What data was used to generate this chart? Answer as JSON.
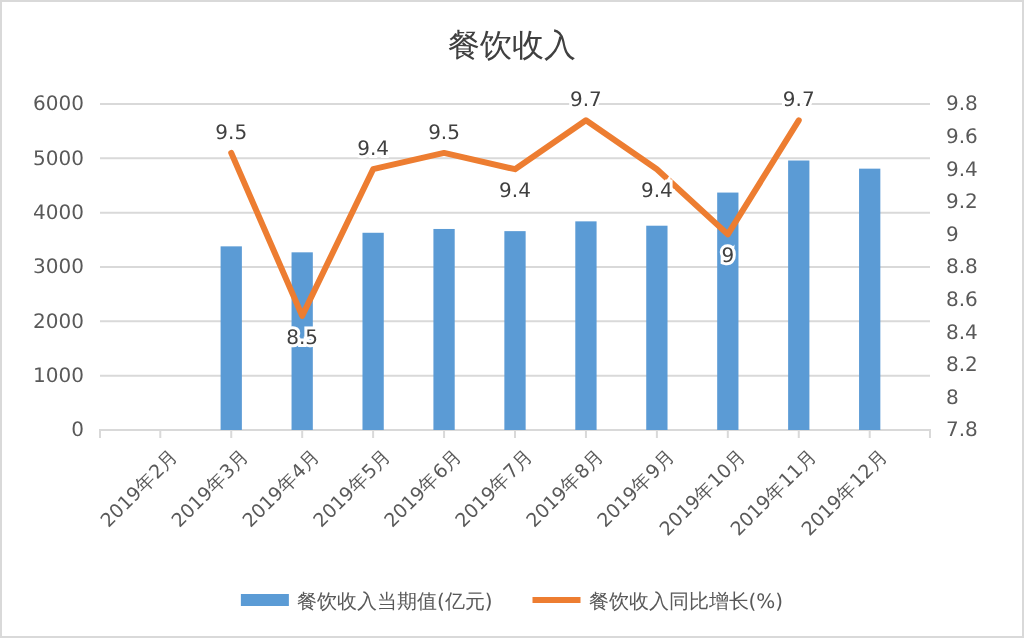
{
  "chart_data": {
    "type": "bar",
    "title": "餐饮收入",
    "categories": [
      "2019年2月",
      "2019年3月",
      "2019年4月",
      "2019年5月",
      "2019年6月",
      "2019年7月",
      "2019年8月",
      "2019年9月",
      "2019年10月",
      "2019年11月",
      "2019年12月"
    ],
    "series": [
      {
        "name": "餐饮收入当期值(亿元)",
        "color": "#5b9bd5",
        "values": [
          null,
          3380,
          3270,
          3630,
          3700,
          3660,
          3840,
          3760,
          4370,
          4960,
          4810
        ]
      },
      {
        "name": "餐饮收入同比增长(%)",
        "type": "line",
        "axis": "y2",
        "color": "#ed7d31",
        "values": [
          null,
          9.5,
          8.5,
          9.4,
          9.5,
          9.4,
          9.7,
          9.4,
          9,
          9.7,
          null
        ],
        "value_labels": [
          null,
          "9.5",
          "8.5",
          "9.4",
          "9.5",
          "9.4",
          "9.7",
          "9.4",
          "9",
          "9.7",
          null
        ]
      }
    ],
    "ylim": [
      0,
      6000
    ],
    "yticks": [
      0,
      1000,
      2000,
      3000,
      4000,
      5000,
      6000
    ],
    "y2lim": [
      7.8,
      9.8
    ],
    "y2ticks": [
      7.8,
      8,
      8.2,
      8.4,
      8.6,
      8.8,
      9,
      9.2,
      9.4,
      9.6,
      9.8
    ],
    "grid": "y",
    "legend": "bottom",
    "marker": "none",
    "line_style": "solid"
  }
}
